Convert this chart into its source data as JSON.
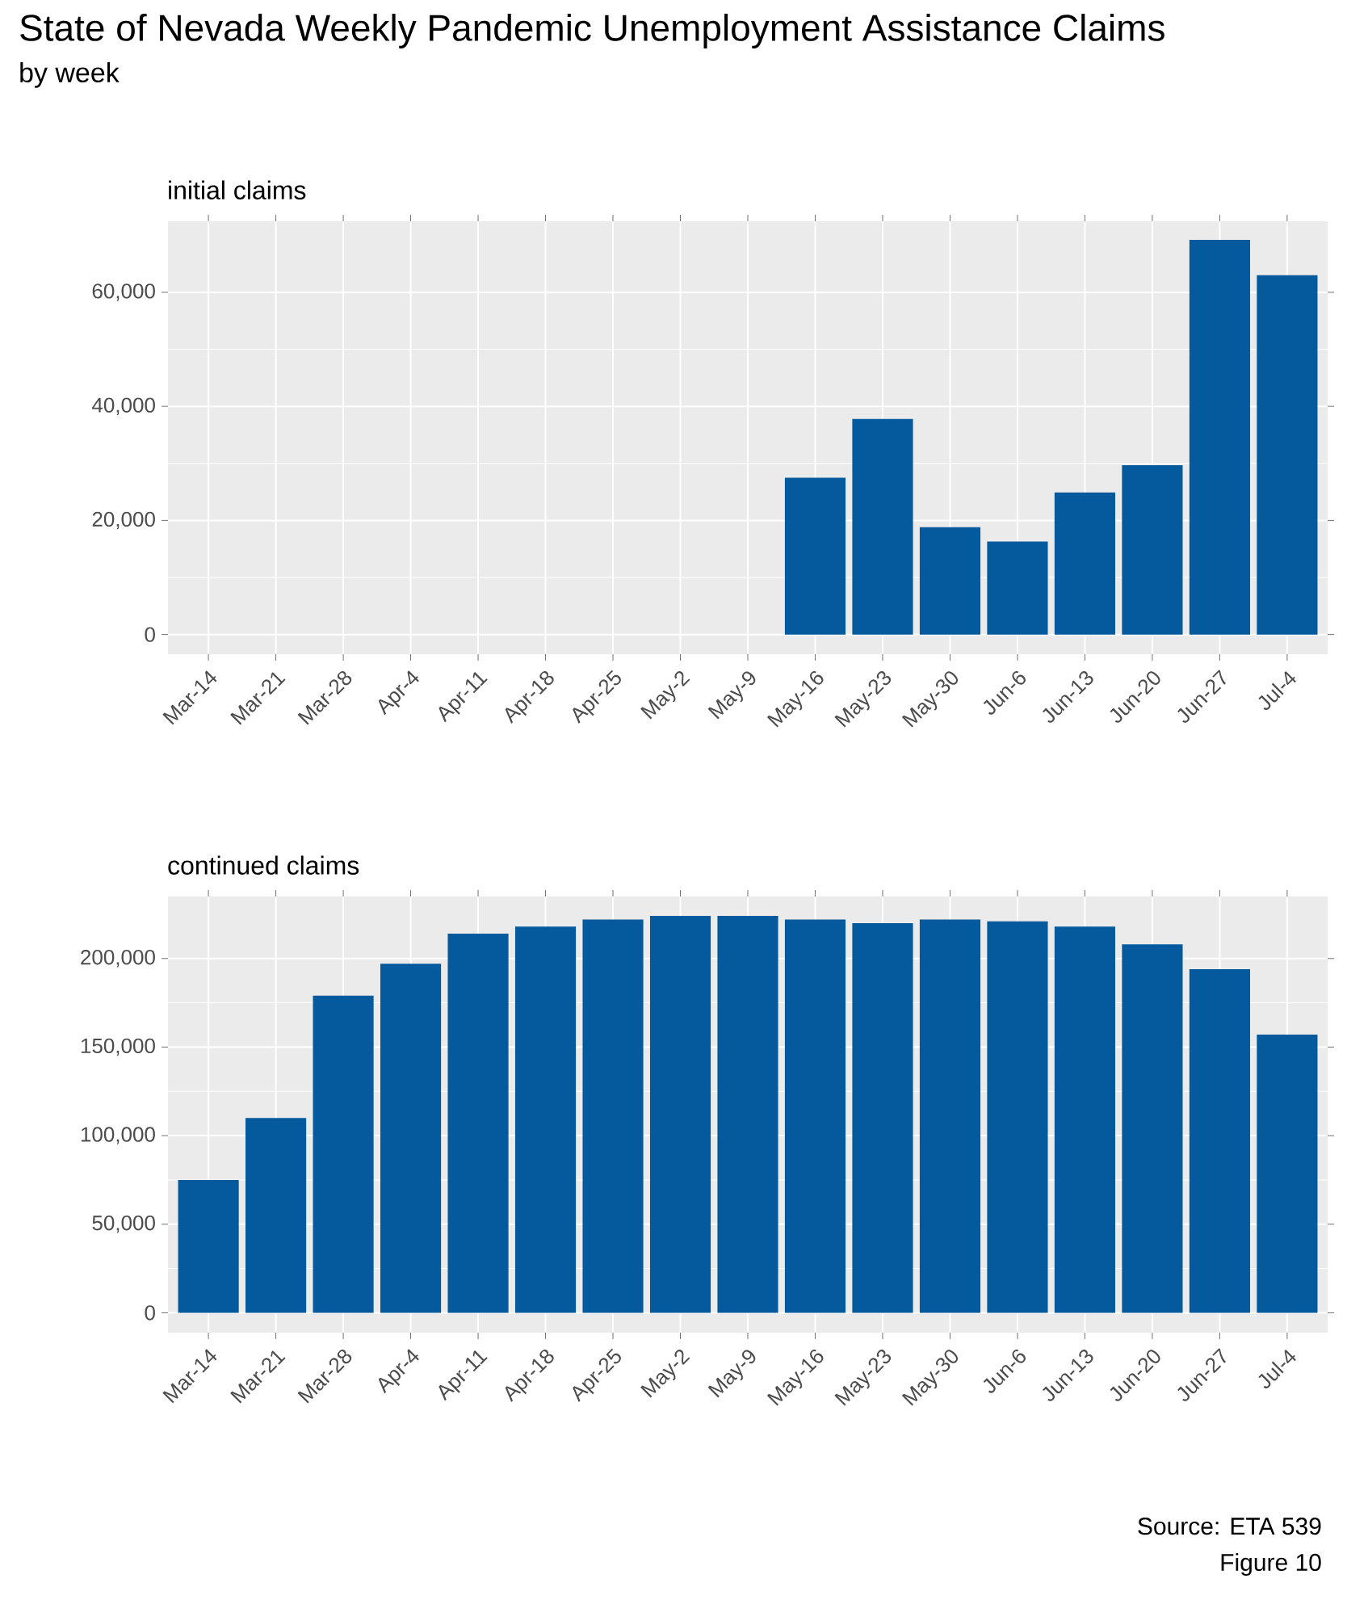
{
  "chart_data": [
    {
      "type": "other",
      "title": "State of Nevada Weekly Pandemic Unemployment Assistance Claims",
      "subtitle": "by week"
    },
    {
      "type": "bar",
      "title": "initial claims",
      "categories": [
        "Mar-14",
        "Mar-21",
        "Mar-28",
        "Apr-4",
        "Apr-11",
        "Apr-18",
        "Apr-25",
        "May-2",
        "May-9",
        "May-16",
        "May-23",
        "May-30",
        "Jun-6",
        "Jun-13",
        "Jun-20",
        "Jun-27",
        "Jul-4"
      ],
      "values": [
        0,
        0,
        0,
        0,
        0,
        0,
        0,
        0,
        0,
        27500,
        37800,
        18800,
        16300,
        24900,
        29700,
        69200,
        63000
      ],
      "color": "#045A9C",
      "ylim": [
        -3450,
        72450
      ],
      "yticks": [
        {
          "value": 0,
          "label": "0"
        },
        {
          "value": 20000,
          "label": "20,000"
        },
        {
          "value": 40000,
          "label": "40,000"
        },
        {
          "value": 60000,
          "label": "60,000"
        }
      ],
      "grid": true
    },
    {
      "type": "bar",
      "title": "continued claims",
      "categories": [
        "Mar-14",
        "Mar-21",
        "Mar-28",
        "Apr-4",
        "Apr-11",
        "Apr-18",
        "Apr-25",
        "May-2",
        "May-9",
        "May-16",
        "May-23",
        "May-30",
        "Jun-6",
        "Jun-13",
        "Jun-20",
        "Jun-27",
        "Jul-4"
      ],
      "values": [
        75000,
        110000,
        179000,
        197000,
        214000,
        218000,
        222000,
        224000,
        224000,
        222000,
        220000,
        222000,
        221000,
        218000,
        208000,
        194000,
        157000
      ],
      "color": "#045A9C",
      "ylim": [
        -11200,
        235000
      ],
      "yticks": [
        {
          "value": 0,
          "label": "0"
        },
        {
          "value": 50000,
          "label": "50,000"
        },
        {
          "value": 100000,
          "label": "100,000"
        },
        {
          "value": 150000,
          "label": "150,000"
        },
        {
          "value": 200000,
          "label": "200,000"
        }
      ],
      "grid": true,
      "annotations": [
        "Source: ETA 539",
        "Figure 10"
      ]
    }
  ]
}
